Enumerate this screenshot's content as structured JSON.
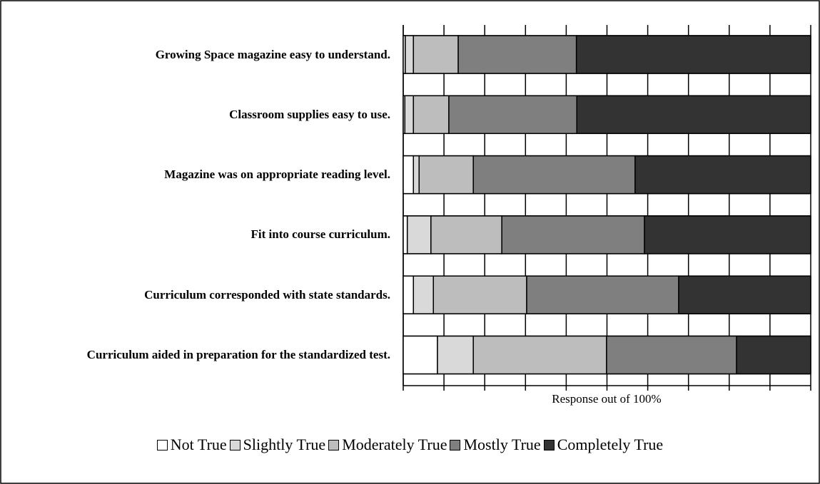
{
  "chart_data": {
    "type": "stacked_barh",
    "xlabel": "Response out of 100%",
    "categories": [
      "Growing Space magazine easy to understand.",
      "Classroom supplies easy to use.",
      "Magazine was on appropriate reading level.",
      "Fit into course curriculum.",
      "Curriculum corresponded with state standards.",
      "Curriculum aided in preparation for the standardized test."
    ],
    "series": [
      {
        "name": "Not True",
        "color": "#ffffff",
        "values": [
          0.5,
          0.4,
          2.5,
          1,
          2.5,
          8.4
        ]
      },
      {
        "name": "Slightly True",
        "color": "#d9d9d9",
        "values": [
          2,
          2.1,
          1.4,
          5.8,
          4.9,
          8.8
        ]
      },
      {
        "name": "Moderately True",
        "color": "#bdbdbd",
        "values": [
          11,
          8.7,
          13.3,
          17.4,
          22.9,
          32.7
        ]
      },
      {
        "name": "Mostly True",
        "color": "#7f7f7f",
        "values": [
          29,
          31.4,
          39.7,
          35,
          37.3,
          31.9
        ]
      },
      {
        "name": "Completely True",
        "color": "#333333",
        "values": [
          57.5,
          57.4,
          43.1,
          40.8,
          32.4,
          18.2
        ]
      }
    ],
    "xlim": [
      0,
      100
    ],
    "xticks": [
      0,
      10,
      20,
      30,
      40,
      50,
      60,
      70,
      80,
      90,
      100
    ],
    "grid": true,
    "legend": "bottom"
  }
}
